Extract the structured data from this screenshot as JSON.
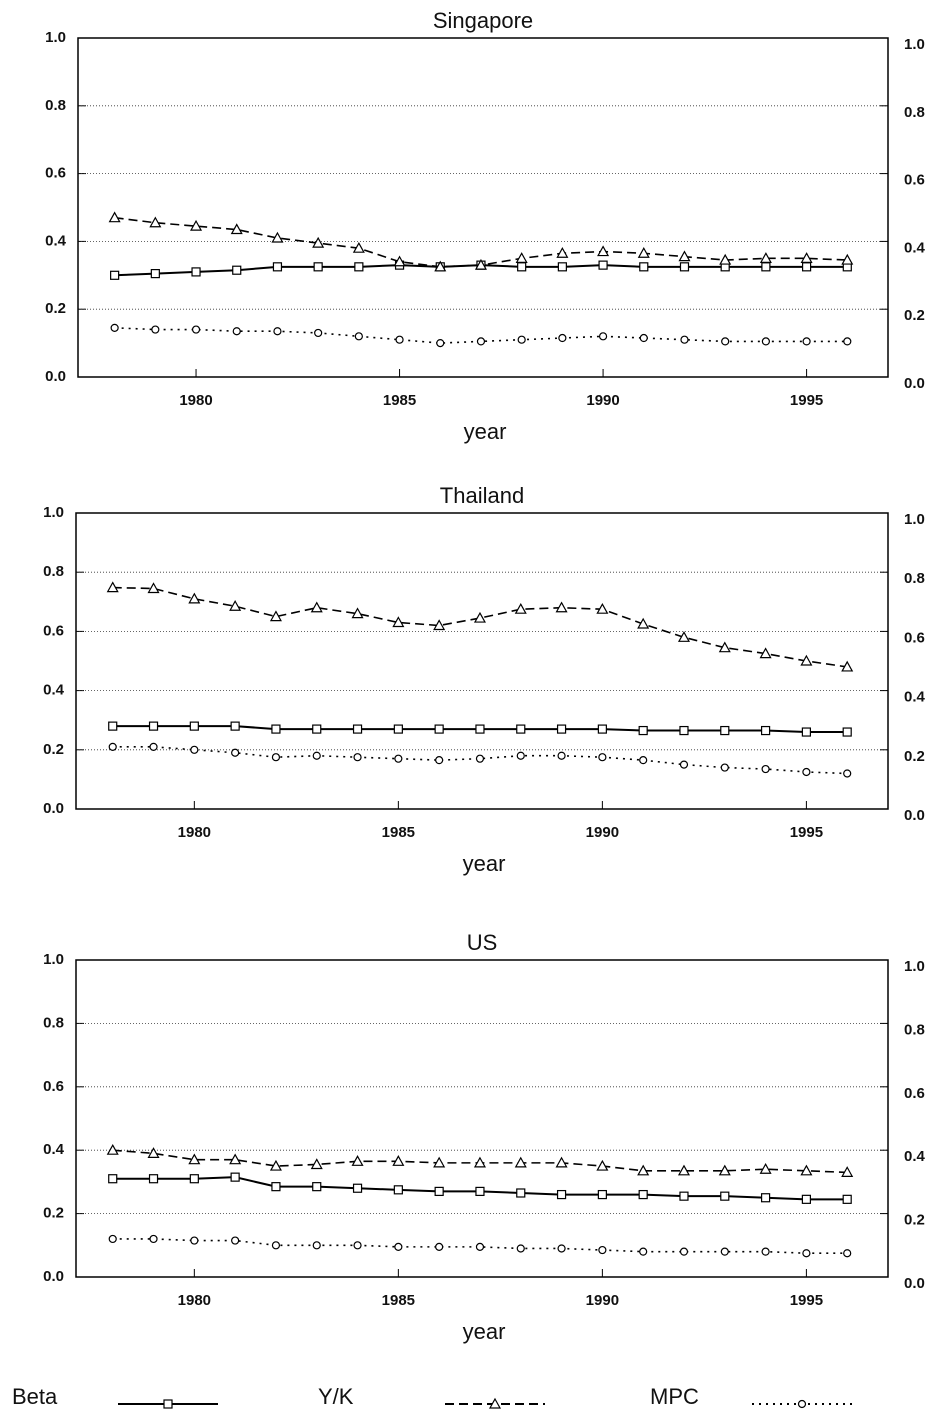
{
  "chart_data": [
    {
      "type": "line",
      "title": "Singapore",
      "xlabel": "year",
      "x": [
        1978,
        1979,
        1980,
        1981,
        1982,
        1983,
        1984,
        1985,
        1986,
        1987,
        1988,
        1989,
        1990,
        1991,
        1992,
        1993,
        1994,
        1995,
        1996
      ],
      "series": [
        {
          "name": "Beta",
          "color": "#000000",
          "marker": "square",
          "dash": "solid",
          "values": [
            0.3,
            0.305,
            0.31,
            0.315,
            0.325,
            0.325,
            0.325,
            0.33,
            0.325,
            0.33,
            0.325,
            0.325,
            0.33,
            0.325,
            0.325,
            0.325,
            0.325,
            0.325,
            0.325
          ]
        },
        {
          "name": "Y/K",
          "color": "#000000",
          "marker": "triangle",
          "dash": "dashed",
          "values": [
            0.47,
            0.455,
            0.445,
            0.435,
            0.41,
            0.395,
            0.38,
            0.34,
            0.325,
            0.33,
            0.35,
            0.365,
            0.37,
            0.365,
            0.355,
            0.345,
            0.35,
            0.35,
            0.345
          ]
        },
        {
          "name": "MPC",
          "color": "#000000",
          "marker": "circle",
          "dash": "dotted",
          "values": [
            0.145,
            0.14,
            0.14,
            0.135,
            0.135,
            0.13,
            0.12,
            0.11,
            0.1,
            0.105,
            0.11,
            0.115,
            0.12,
            0.115,
            0.11,
            0.105,
            0.105,
            0.105,
            0.105
          ]
        }
      ],
      "xlim": [
        1977.1,
        1997.0
      ],
      "xticks": [
        1980,
        1985,
        1990,
        1995
      ],
      "ylim": [
        0,
        1
      ],
      "yticks": [
        {
          "value": 0,
          "label": "0.0"
        },
        0.2,
        0.4,
        0.6,
        0.8,
        {
          "value": 1,
          "label": "1.0"
        }
      ],
      "y2lim": [
        0,
        1
      ],
      "y2ticks": [
        {
          "value": 0,
          "label": "0.0"
        },
        0.2,
        0.4,
        0.6,
        0.8,
        {
          "value": 1,
          "label": "1.0"
        }
      ],
      "grid": true
    },
    {
      "type": "line",
      "title": "Thailand",
      "xlabel": "year",
      "x": [
        1978,
        1979,
        1980,
        1981,
        1982,
        1983,
        1984,
        1985,
        1986,
        1987,
        1988,
        1989,
        1990,
        1991,
        1992,
        1993,
        1994,
        1995,
        1996
      ],
      "series": [
        {
          "name": "Beta",
          "color": "#000000",
          "marker": "square",
          "dash": "solid",
          "values": [
            0.28,
            0.28,
            0.28,
            0.28,
            0.27,
            0.27,
            0.27,
            0.27,
            0.27,
            0.27,
            0.27,
            0.27,
            0.27,
            0.265,
            0.265,
            0.265,
            0.265,
            0.26,
            0.26
          ]
        },
        {
          "name": "Y/K",
          "color": "#000000",
          "marker": "triangle",
          "dash": "dashed",
          "values": [
            0.748,
            0.745,
            0.71,
            0.685,
            0.65,
            0.68,
            0.66,
            0.63,
            0.62,
            0.645,
            0.675,
            0.68,
            0.675,
            0.625,
            0.58,
            0.545,
            0.525,
            0.5,
            0.48
          ]
        },
        {
          "name": "MPC",
          "color": "#000000",
          "marker": "circle",
          "dash": "dotted",
          "values": [
            0.21,
            0.21,
            0.2,
            0.19,
            0.175,
            0.18,
            0.175,
            0.17,
            0.165,
            0.17,
            0.18,
            0.18,
            0.175,
            0.165,
            0.15,
            0.14,
            0.135,
            0.125,
            0.12
          ]
        }
      ],
      "xlim": [
        1977.1,
        1997.0
      ],
      "xticks": [
        1980,
        1985,
        1990,
        1995
      ],
      "ylim": [
        0,
        1
      ],
      "yticks": [
        {
          "value": 0,
          "label": "0.0"
        },
        0.2,
        0.4,
        0.6,
        0.8,
        {
          "value": 1,
          "label": "1.0"
        }
      ],
      "y2lim": [
        0,
        1
      ],
      "y2ticks": [
        {
          "value": 0,
          "label": "0.0"
        },
        0.2,
        0.4,
        0.6,
        0.8,
        {
          "value": 1,
          "label": "1.0"
        }
      ],
      "grid": true
    },
    {
      "type": "line",
      "title": "US",
      "xlabel": "year",
      "x": [
        1978,
        1979,
        1980,
        1981,
        1982,
        1983,
        1984,
        1985,
        1986,
        1987,
        1988,
        1989,
        1990,
        1991,
        1992,
        1993,
        1994,
        1995,
        1996
      ],
      "series": [
        {
          "name": "Beta",
          "color": "#000000",
          "marker": "square",
          "dash": "solid",
          "values": [
            0.31,
            0.31,
            0.31,
            0.315,
            0.285,
            0.285,
            0.28,
            0.275,
            0.27,
            0.27,
            0.265,
            0.26,
            0.26,
            0.26,
            0.255,
            0.255,
            0.25,
            0.245,
            0.245
          ]
        },
        {
          "name": "Y/K",
          "color": "#000000",
          "marker": "triangle",
          "dash": "dashed",
          "values": [
            0.4,
            0.39,
            0.37,
            0.37,
            0.35,
            0.355,
            0.365,
            0.365,
            0.36,
            0.36,
            0.36,
            0.36,
            0.35,
            0.335,
            0.335,
            0.335,
            0.34,
            0.335,
            0.33
          ]
        },
        {
          "name": "MPC",
          "color": "#000000",
          "marker": "circle",
          "dash": "dotted",
          "values": [
            0.12,
            0.12,
            0.115,
            0.115,
            0.1,
            0.1,
            0.1,
            0.095,
            0.095,
            0.095,
            0.09,
            0.09,
            0.085,
            0.08,
            0.08,
            0.08,
            0.08,
            0.075,
            0.075
          ]
        }
      ],
      "xlim": [
        1977.1,
        1997.0
      ],
      "xticks": [
        1980,
        1985,
        1990,
        1995
      ],
      "ylim": [
        0,
        1
      ],
      "yticks": [
        {
          "value": 0,
          "label": "0.0"
        },
        0.2,
        0.4,
        0.6,
        0.8,
        {
          "value": 1,
          "label": "1.0"
        }
      ],
      "y2lim": [
        0,
        1
      ],
      "y2ticks": [
        {
          "value": 0,
          "label": "0.0"
        },
        0.2,
        0.4,
        0.6,
        0.8,
        {
          "value": 1,
          "label": "1.0"
        }
      ],
      "grid": true
    }
  ]
}
